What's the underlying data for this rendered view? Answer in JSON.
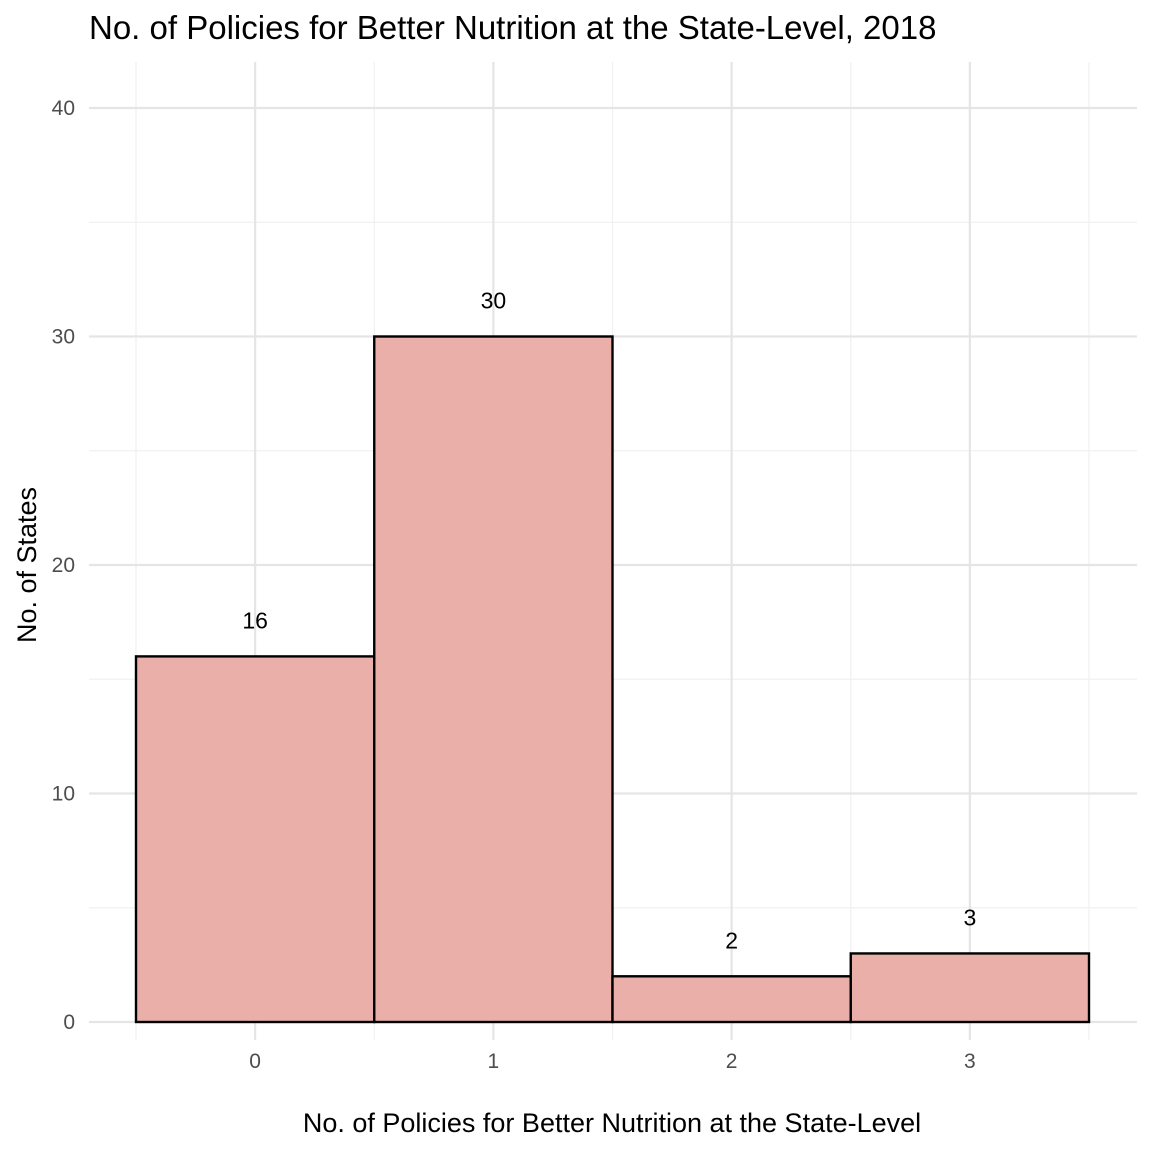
{
  "chart_data": {
    "type": "bar",
    "title": "No. of Policies for Better Nutrition at the State-Level, 2018",
    "xlabel": "No. of Policies for Better Nutrition at the State-Level",
    "ylabel": "No. of States",
    "categories": [
      "0",
      "1",
      "2",
      "3"
    ],
    "x": [
      0,
      1,
      2,
      3
    ],
    "values": [
      16,
      30,
      2,
      3
    ],
    "data_labels": [
      "16",
      "30",
      "2",
      "3"
    ],
    "xlim": [
      -0.5,
      3.5
    ],
    "ylim": [
      0,
      40
    ],
    "y_ticks": [
      0,
      10,
      20,
      30,
      40
    ],
    "grid": true,
    "legend": "none",
    "colors": {
      "bar_fill": "#ebafaa",
      "bar_outline": "#000000",
      "grid": "#e5e5e5",
      "background": "#ffffff"
    }
  }
}
